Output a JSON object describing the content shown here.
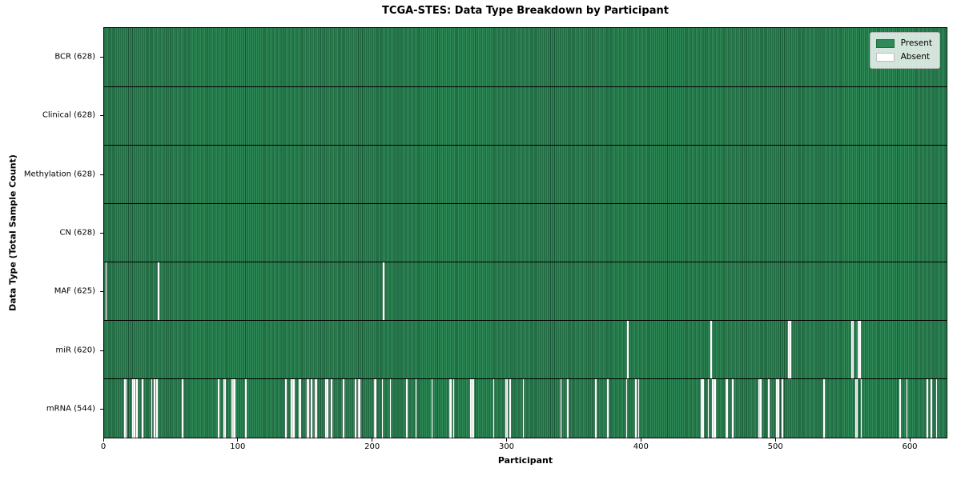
{
  "chart_data": {
    "type": "heatmap",
    "title": "TCGA-STES: Data Type Breakdown by Participant",
    "xlabel": "Participant",
    "ylabel": "Data Type (Total Sample Count)",
    "x_ticks": [
      0,
      100,
      200,
      300,
      400,
      500,
      600
    ],
    "xlim": [
      0,
      628
    ],
    "n_participants": 628,
    "grid": false,
    "legend_position": "upper right",
    "legend_items": [
      {
        "label": "Present",
        "color": "#2e8b57"
      },
      {
        "label": "Absent",
        "color": "#ffffff"
      }
    ],
    "colors": {
      "present_fill": "#2e8b57",
      "present_edge": "#1b5236",
      "absent_fill": "#ffffff",
      "row_separator": "#000000",
      "axis": "#000000"
    },
    "rows": [
      {
        "label": "BCR (628)",
        "data_type": "BCR",
        "present_count": 628,
        "absent_participants": []
      },
      {
        "label": "Clinical (628)",
        "data_type": "Clinical",
        "present_count": 628,
        "absent_participants": []
      },
      {
        "label": "Methylation (628)",
        "data_type": "Methylation",
        "present_count": 628,
        "absent_participants": []
      },
      {
        "label": "CN (628)",
        "data_type": "CN",
        "present_count": 628,
        "absent_participants": []
      },
      {
        "label": "MAF (625)",
        "data_type": "MAF",
        "present_count": 625,
        "absent_participants": [
          1,
          40,
          208
        ]
      },
      {
        "label": "miR (620)",
        "data_type": "miR",
        "present_count": 620,
        "absent_participants": [
          390,
          452,
          510,
          511,
          557,
          558,
          562,
          563
        ]
      },
      {
        "label": "mRNA (544)",
        "data_type": "mRNA",
        "present_count": 544,
        "absent_participants": [
          15,
          16,
          21,
          22,
          24,
          28,
          35,
          37,
          39,
          58,
          85,
          89,
          90,
          95,
          96,
          97,
          105,
          135,
          139,
          140,
          141,
          145,
          146,
          151,
          152,
          154,
          157,
          158,
          165,
          166,
          169,
          178,
          187,
          189,
          190,
          201,
          202,
          207,
          213,
          225,
          232,
          244,
          257,
          258,
          260,
          273,
          274,
          275,
          290,
          299,
          300,
          302,
          312,
          340,
          345,
          366,
          375,
          389,
          396,
          398,
          445,
          446,
          450,
          453,
          454,
          455,
          463,
          464,
          468,
          488,
          489,
          495,
          501,
          502,
          505,
          536,
          560,
          561,
          564,
          593,
          598,
          613,
          616,
          620
        ]
      }
    ]
  }
}
